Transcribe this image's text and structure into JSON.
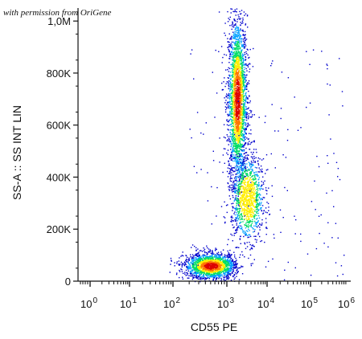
{
  "watermark": "with permission from OriGene",
  "chart_data": {
    "type": "scatter",
    "plot_style": "flow cytometry pseudocolor density dot plot",
    "xlabel": "CD55 PE",
    "ylabel": "SS-A :: SS INT LIN",
    "x_scale": "log (biexponential display)",
    "y_scale": "linear",
    "xlim": [
      1,
      1000000
    ],
    "ylim": [
      0,
      1050000
    ],
    "x_ticks": [
      {
        "value": 1,
        "base": "10",
        "exp": "0"
      },
      {
        "value": 10,
        "base": "10",
        "exp": "1"
      },
      {
        "value": 100,
        "base": "10",
        "exp": "2"
      },
      {
        "value": 1000,
        "base": "10",
        "exp": "3"
      },
      {
        "value": 10000,
        "base": "10",
        "exp": "4"
      },
      {
        "value": 100000,
        "base": "10",
        "exp": "5"
      },
      {
        "value": 1000000,
        "base": "10",
        "exp": "6"
      }
    ],
    "y_ticks": [
      {
        "value": 0,
        "label": "0"
      },
      {
        "value": 200000,
        "label": "200K"
      },
      {
        "value": 400000,
        "label": "400K"
      },
      {
        "value": 600000,
        "label": "600K"
      },
      {
        "value": 800000,
        "label": "800K"
      },
      {
        "value": 1000000,
        "label": "1,0M"
      }
    ],
    "populations": [
      {
        "x_center": 1800,
        "y_center": 700000,
        "x_spread_decades": 0.12,
        "y_spread": 160000,
        "relative_density": 1.0
      },
      {
        "x_center": 3200,
        "y_center": 320000,
        "x_spread_decades": 0.2,
        "y_spread": 80000,
        "relative_density": 0.45
      },
      {
        "x_center": 500,
        "y_center": 60000,
        "x_spread_decades": 0.25,
        "y_spread": 25000,
        "relative_density": 0.7
      }
    ],
    "color_scale": [
      "#0000cc",
      "#00a0ff",
      "#00dd66",
      "#ffee00",
      "#ff7700",
      "#dd0000"
    ],
    "grid": false,
    "legend": "none"
  }
}
